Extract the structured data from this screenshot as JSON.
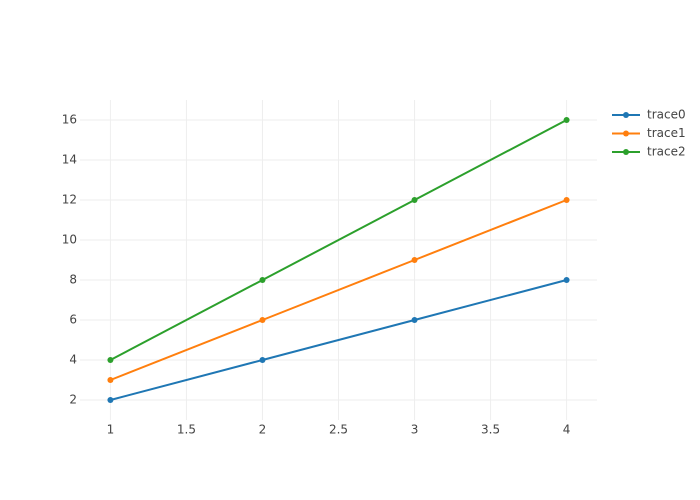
{
  "chart_data": {
    "type": "line",
    "x": [
      1,
      2,
      3,
      4
    ],
    "series": [
      {
        "name": "trace0",
        "color": "#1f77b4",
        "values": [
          2,
          4,
          6,
          8
        ]
      },
      {
        "name": "trace1",
        "color": "#ff7f0e",
        "values": [
          3,
          6,
          9,
          12
        ]
      },
      {
        "name": "trace2",
        "color": "#2ca02c",
        "values": [
          4,
          8,
          12,
          16
        ]
      }
    ],
    "xlim": [
      0.8,
      4.2
    ],
    "xticks": [
      1,
      1.5,
      2,
      2.5,
      3,
      3.5,
      4
    ],
    "ylim": [
      1,
      17
    ],
    "yticks": [
      2,
      4,
      6,
      8,
      10,
      12,
      14,
      16
    ],
    "grid": true,
    "legend": "right"
  }
}
